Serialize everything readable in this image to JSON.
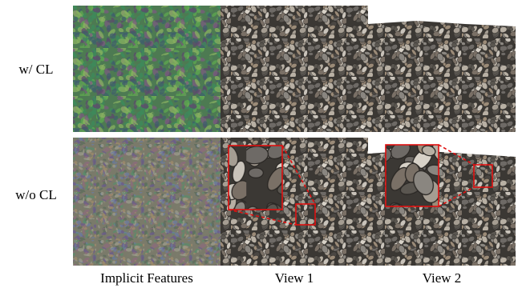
{
  "row_labels": [
    "w/ CL",
    "w/o CL"
  ],
  "column_labels": [
    "Implicit Features",
    "View 1",
    "View 2"
  ]
}
